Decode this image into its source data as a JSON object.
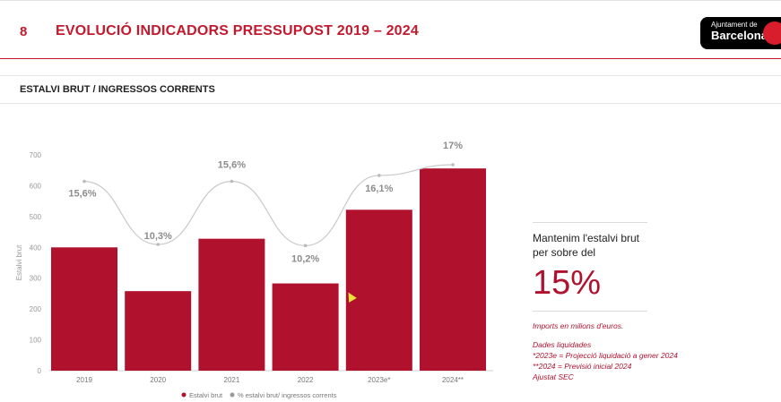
{
  "header": {
    "section_number": "8",
    "title": "EVOLUCIÓ INDICADORS PRESSUPOST 2019 – 2024",
    "logo_line1": "Ajuntament de",
    "logo_line2": "Barcelona"
  },
  "subheader": {
    "title": "ESTALVI BRUT / INGRESSOS CORRENTS"
  },
  "side": {
    "text": "Mantenim l'estalvi brut per sobre del",
    "big_value": "15%",
    "note_units": "Imports en milions d'euros.",
    "notes": [
      "Dades liquidades",
      "*2023e = Projecció liquidació a gener 2024",
      "**2024 = Previsió inicial 2024",
      "Ajustat SEC"
    ]
  },
  "colors": {
    "accent": "#c4192d",
    "bar": "#b0122e",
    "line": "#c9c9c9",
    "label": "#8c8c8c"
  },
  "chart_data": {
    "type": "bar",
    "categories": [
      "2019",
      "2020",
      "2021",
      "2022",
      "2023e*",
      "2024**"
    ],
    "series": [
      {
        "name": "Estalvi brut",
        "type": "bar",
        "values": [
          400,
          258,
          428,
          283,
          522,
          656
        ]
      },
      {
        "name": "% estalvi brut/ ingressos corrents",
        "type": "line",
        "values": [
          15.6,
          10.3,
          15.6,
          10.2,
          16.1,
          17.0
        ]
      }
    ],
    "line_labels": [
      "15,6%",
      "10,3%",
      "15,6%",
      "10,2%",
      "16,1%",
      "17%"
    ],
    "ylabel": "Estalvi brut",
    "ylim": [
      0,
      700
    ],
    "yticks": [
      0,
      100,
      200,
      300,
      400,
      500,
      600,
      700
    ],
    "legend": "bottom",
    "grid": false
  }
}
